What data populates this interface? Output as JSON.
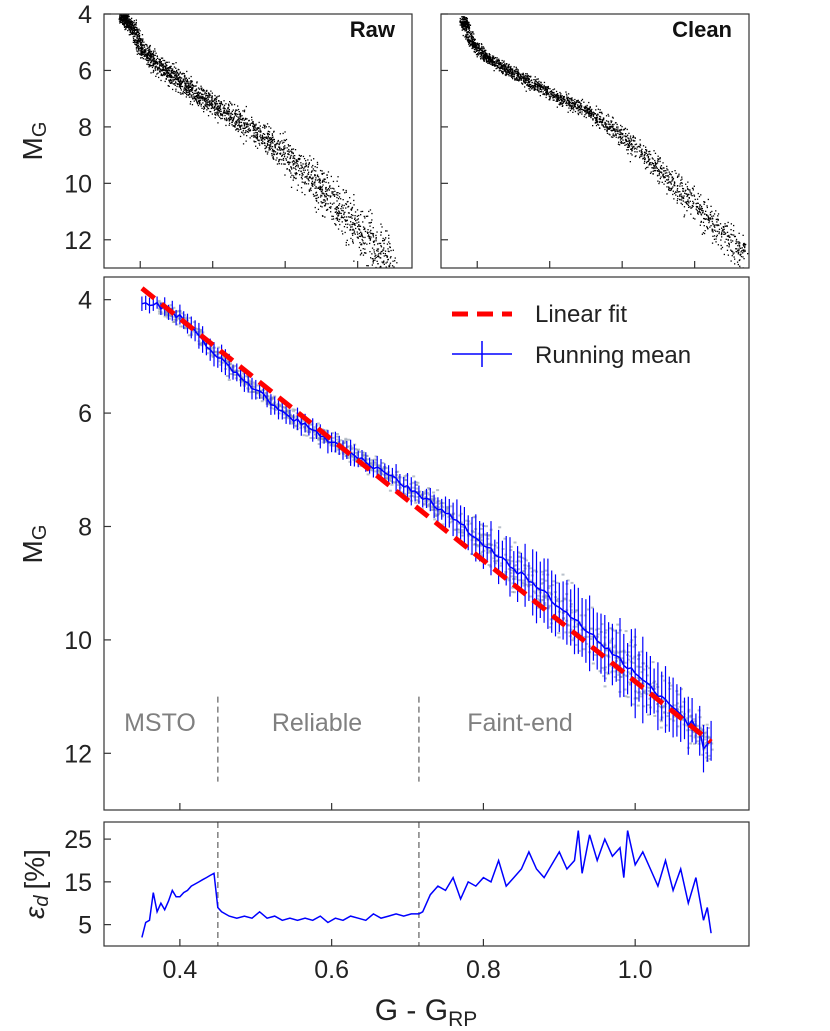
{
  "figure": {
    "x_axis_label": "G - G",
    "x_axis_label_sub": "RP",
    "x_ticks": [
      "0.4",
      "0.6",
      "0.8",
      "1.0"
    ],
    "x_tick_values": [
      0.4,
      0.6,
      0.8,
      1.0
    ],
    "xlim": [
      0.3,
      1.15
    ]
  },
  "chart_data": [
    {
      "type": "scatter",
      "panel_label": "Raw",
      "ylabel": "M",
      "ylabel_sub": "G",
      "y_inverted": true,
      "ylim": [
        4.0,
        13.0
      ],
      "y_ticks": [
        "4",
        "6",
        "8",
        "10",
        "12"
      ],
      "y_tick_values": [
        4,
        6,
        8,
        10,
        12
      ],
      "xlim": [
        0.3,
        1.15
      ],
      "point_color": "#000000",
      "ridge": [
        [
          0.35,
          4.1
        ],
        [
          0.38,
          4.5
        ],
        [
          0.4,
          5.2
        ],
        [
          0.45,
          5.8
        ],
        [
          0.5,
          6.3
        ],
        [
          0.55,
          6.8
        ],
        [
          0.6,
          7.2
        ],
        [
          0.65,
          7.6
        ],
        [
          0.7,
          8.0
        ],
        [
          0.75,
          8.5
        ],
        [
          0.8,
          9.0
        ],
        [
          0.85,
          9.6
        ],
        [
          0.9,
          10.2
        ],
        [
          0.95,
          10.9
        ],
        [
          1.0,
          11.6
        ],
        [
          1.05,
          12.3
        ],
        [
          1.1,
          12.8
        ]
      ],
      "spread": [
        [
          0.35,
          0.25
        ],
        [
          0.45,
          0.45
        ],
        [
          0.6,
          0.45
        ],
        [
          0.75,
          0.6
        ],
        [
          0.9,
          0.9
        ],
        [
          1.0,
          1.1
        ],
        [
          1.1,
          1.2
        ]
      ]
    },
    {
      "type": "scatter",
      "panel_label": "Clean",
      "y_inverted": true,
      "ylim": [
        4.0,
        13.0
      ],
      "y_ticks": [
        "4",
        "6",
        "8",
        "10",
        "12"
      ],
      "y_tick_values": [
        4,
        6,
        8,
        10,
        12
      ],
      "xlim": [
        0.3,
        1.15
      ],
      "point_color": "#000000",
      "ridge": [
        [
          0.36,
          4.2
        ],
        [
          0.38,
          4.9
        ],
        [
          0.42,
          5.5
        ],
        [
          0.5,
          6.1
        ],
        [
          0.6,
          6.8
        ],
        [
          0.7,
          7.4
        ],
        [
          0.8,
          8.3
        ],
        [
          0.9,
          9.5
        ],
        [
          1.0,
          10.8
        ],
        [
          1.1,
          12.1
        ],
        [
          1.14,
          12.6
        ]
      ],
      "spread": [
        [
          0.35,
          0.2
        ],
        [
          0.5,
          0.25
        ],
        [
          0.7,
          0.3
        ],
        [
          0.85,
          0.5
        ],
        [
          1.0,
          0.7
        ],
        [
          1.14,
          0.8
        ]
      ]
    },
    {
      "type": "line",
      "ylabel": "M",
      "ylabel_sub": "G",
      "y_inverted": true,
      "ylim": [
        3.6,
        13.0
      ],
      "y_ticks": [
        "4",
        "6",
        "8",
        "10",
        "12"
      ],
      "y_tick_values": [
        4,
        6,
        8,
        10,
        12
      ],
      "xlim": [
        0.3,
        1.15
      ],
      "legend": [
        "Linear fit",
        "Running mean"
      ],
      "legend_position": "top-right",
      "fit_color": "#ff0000",
      "mean_color": "#0000ff",
      "density_color": "#8a98a8",
      "fit_line": {
        "x": [
          0.35,
          1.1
        ],
        "y": [
          3.8,
          11.8
        ]
      },
      "region_boundaries": [
        0.45,
        0.715
      ],
      "region_labels": [
        "MSTO",
        "Reliable",
        "Faint-end"
      ],
      "region_label_color": "#808080",
      "running_mean_anchors": {
        "x": [
          0.35,
          0.37,
          0.4,
          0.45,
          0.5,
          0.55,
          0.6,
          0.65,
          0.7,
          0.75,
          0.8,
          0.85,
          0.9,
          0.95,
          1.0,
          1.05,
          1.08,
          1.1
        ],
        "y": [
          4.1,
          4.1,
          4.3,
          5.0,
          5.6,
          6.1,
          6.5,
          6.9,
          7.3,
          7.75,
          8.3,
          8.85,
          9.4,
          10.0,
          10.6,
          11.2,
          11.6,
          11.9
        ]
      },
      "error_bar_halfwidth": {
        "x": [
          0.35,
          0.45,
          0.5,
          0.72,
          0.8,
          0.9,
          1.0,
          1.1
        ],
        "e": [
          0.12,
          0.2,
          0.15,
          0.2,
          0.35,
          0.55,
          0.65,
          0.3
        ]
      }
    },
    {
      "type": "line",
      "ylabel": "ε_d [%]",
      "ylabel_text": "[%]",
      "ylabel_symbol": "ε",
      "ylabel_symbol_sub": "d",
      "ylim": [
        0,
        29
      ],
      "y_ticks": [
        "5",
        "15",
        "25"
      ],
      "y_tick_values": [
        5,
        15,
        25
      ],
      "xlim": [
        0.3,
        1.15
      ],
      "line_color": "#0000ff",
      "x": [
        0.35,
        0.355,
        0.36,
        0.365,
        0.37,
        0.375,
        0.38,
        0.385,
        0.39,
        0.395,
        0.4,
        0.405,
        0.41,
        0.415,
        0.42,
        0.425,
        0.43,
        0.435,
        0.44,
        0.445,
        0.45,
        0.455,
        0.465,
        0.475,
        0.485,
        0.495,
        0.505,
        0.515,
        0.525,
        0.535,
        0.545,
        0.555,
        0.565,
        0.575,
        0.585,
        0.595,
        0.605,
        0.615,
        0.625,
        0.635,
        0.645,
        0.655,
        0.665,
        0.675,
        0.685,
        0.695,
        0.705,
        0.715,
        0.72,
        0.73,
        0.74,
        0.75,
        0.76,
        0.77,
        0.78,
        0.79,
        0.8,
        0.81,
        0.82,
        0.83,
        0.84,
        0.85,
        0.86,
        0.87,
        0.88,
        0.89,
        0.9,
        0.91,
        0.92,
        0.925,
        0.93,
        0.94,
        0.95,
        0.96,
        0.97,
        0.98,
        0.985,
        0.99,
        1.0,
        1.01,
        1.02,
        1.03,
        1.04,
        1.05,
        1.06,
        1.07,
        1.08,
        1.09,
        1.095,
        1.1
      ],
      "y": [
        2,
        5.5,
        6,
        12.5,
        8,
        10,
        8.5,
        10.5,
        13,
        11.5,
        11.5,
        12.5,
        13,
        14,
        14.5,
        15,
        15.5,
        16,
        16.5,
        17,
        9,
        8,
        7,
        6.5,
        7,
        6.5,
        8,
        6.5,
        7,
        6,
        6.5,
        6,
        6.5,
        6,
        7,
        5.5,
        6.5,
        6,
        7,
        6.5,
        6,
        7.5,
        6.5,
        7,
        7.5,
        7,
        7.5,
        7.5,
        8,
        12,
        14,
        13,
        16,
        11,
        15,
        14,
        16,
        15,
        20,
        14,
        16,
        18,
        22,
        18,
        16,
        19,
        22,
        18,
        20,
        27,
        17,
        26,
        20,
        25,
        21,
        23,
        16,
        27,
        19,
        22,
        18,
        14,
        20,
        13,
        18,
        10,
        16,
        6,
        9,
        3
      ]
    }
  ]
}
